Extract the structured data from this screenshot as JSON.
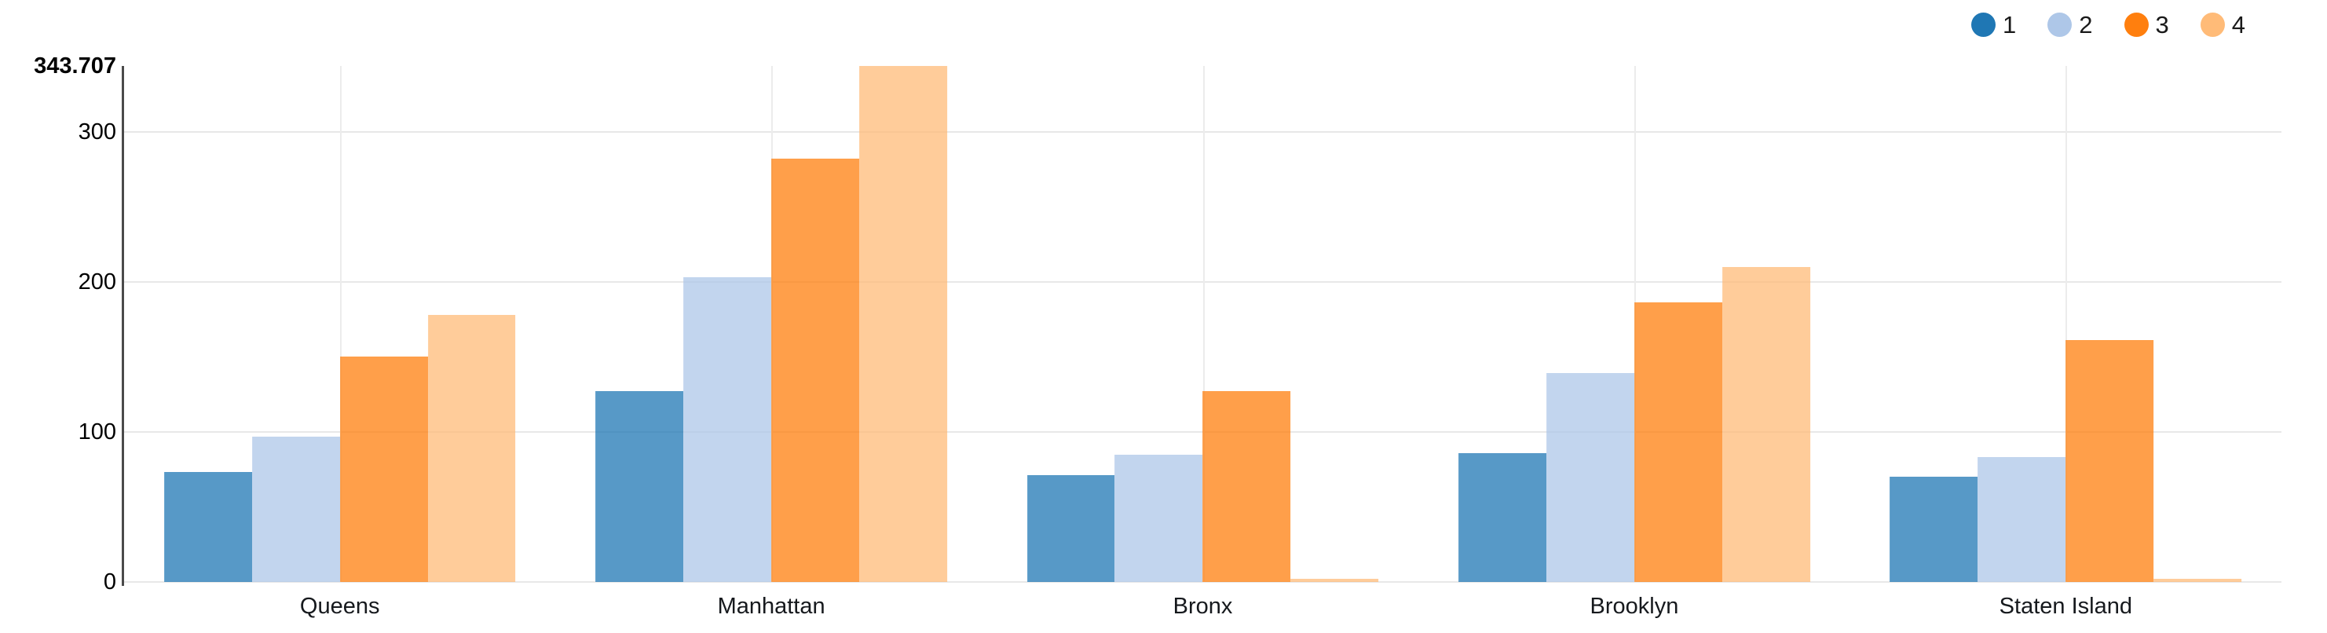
{
  "chart_data": {
    "type": "bar",
    "title": "",
    "categories": [
      "Queens",
      "Manhattan",
      "Bronx",
      "Brooklyn",
      "Staten Island"
    ],
    "series": [
      {
        "name": "1",
        "color": "#1f77b4",
        "values": [
          73,
          127,
          71,
          86,
          70
        ]
      },
      {
        "name": "2",
        "color": "#aec7e8",
        "values": [
          97,
          203,
          85,
          139,
          83
        ]
      },
      {
        "name": "3",
        "color": "#ff7f0e",
        "values": [
          150,
          282,
          127,
          186,
          161
        ]
      },
      {
        "name": "4",
        "color": "#ffbb78",
        "values": [
          178,
          343.707,
          2,
          210,
          2
        ]
      }
    ],
    "ylim": [
      0,
      343.707
    ],
    "y_ticks": [
      "0",
      "100",
      "200",
      "300"
    ],
    "y_max_label": "343.707",
    "xlabel": "",
    "ylabel": "",
    "grid": true,
    "legend_position": "top-right",
    "bar_opacity": 0.75,
    "gridline_color": "#e8e8e8",
    "axis_color": "#4a4a4a"
  }
}
